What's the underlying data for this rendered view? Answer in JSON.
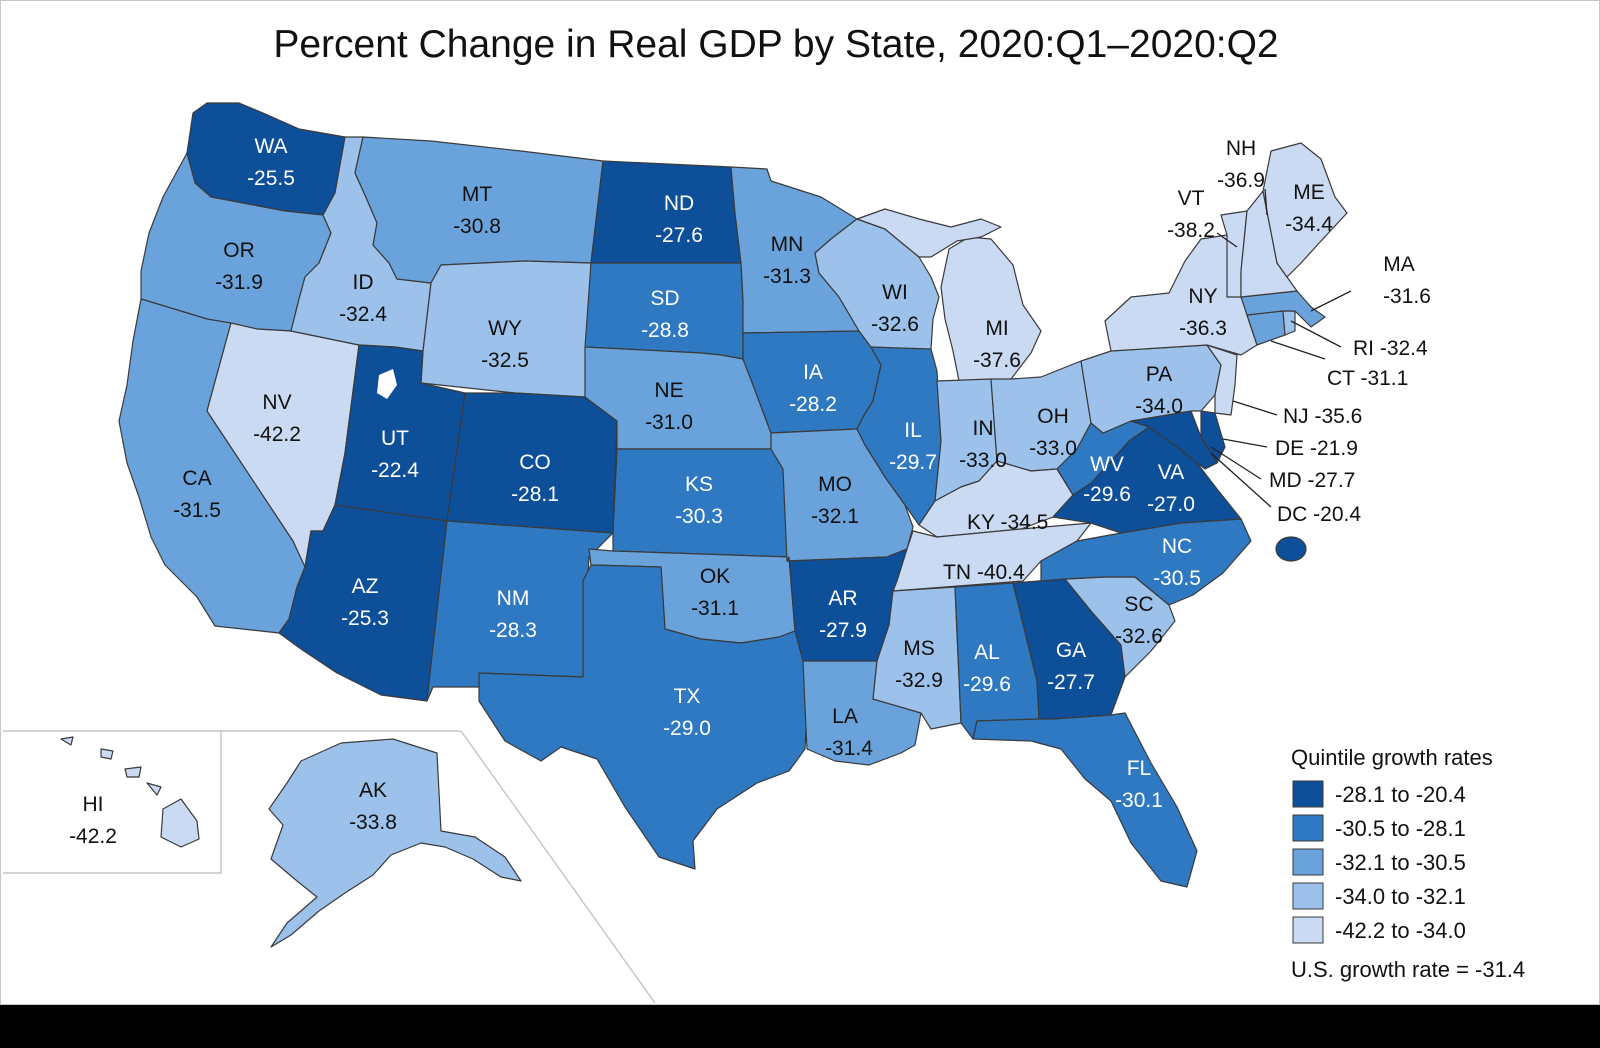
{
  "title": "Percent Change in Real GDP by State, 2020:Q1–2020:Q2",
  "colors": {
    "q1": "#0e4f9a",
    "q2": "#2f78c2",
    "q3": "#6aa3db",
    "q4": "#9cc1ea",
    "q5": "#c9daf2",
    "border": "#3a3a3a",
    "leader": "#222222",
    "inset_border": "#bbbbbb"
  },
  "legend": {
    "title": "Quintile growth rates",
    "items": [
      {
        "label": "-28.1 to -20.4",
        "color": "#0e4f9a"
      },
      {
        "label": "-30.5 to -28.1",
        "color": "#2f78c2"
      },
      {
        "label": "-32.1 to -30.5",
        "color": "#6aa3db"
      },
      {
        "label": "-34.0 to -32.1",
        "color": "#9cc1ea"
      },
      {
        "label": "-42.2 to -34.0",
        "color": "#c9daf2"
      }
    ],
    "us_rate": "U.S. growth rate = -31.4"
  },
  "states": {
    "WA": {
      "abbr": "WA",
      "value": "-25.5",
      "quintile": 1
    },
    "OR": {
      "abbr": "OR",
      "value": "-31.9",
      "quintile": 3
    },
    "CA": {
      "abbr": "CA",
      "value": "-31.5",
      "quintile": 3
    },
    "NV": {
      "abbr": "NV",
      "value": "-42.2",
      "quintile": 5
    },
    "ID": {
      "abbr": "ID",
      "value": "-32.4",
      "quintile": 4
    },
    "MT": {
      "abbr": "MT",
      "value": "-30.8",
      "quintile": 3
    },
    "WY": {
      "abbr": "WY",
      "value": "-32.5",
      "quintile": 4
    },
    "UT": {
      "abbr": "UT",
      "value": "-22.4",
      "quintile": 1
    },
    "AZ": {
      "abbr": "AZ",
      "value": "-25.3",
      "quintile": 1
    },
    "CO": {
      "abbr": "CO",
      "value": "-28.1",
      "quintile": 1
    },
    "NM": {
      "abbr": "NM",
      "value": "-28.3",
      "quintile": 2
    },
    "ND": {
      "abbr": "ND",
      "value": "-27.6",
      "quintile": 1
    },
    "SD": {
      "abbr": "SD",
      "value": "-28.8",
      "quintile": 2
    },
    "NE": {
      "abbr": "NE",
      "value": "-31.0",
      "quintile": 3
    },
    "KS": {
      "abbr": "KS",
      "value": "-30.3",
      "quintile": 2
    },
    "OK": {
      "abbr": "OK",
      "value": "-31.1",
      "quintile": 3
    },
    "TX": {
      "abbr": "TX",
      "value": "-29.0",
      "quintile": 2
    },
    "MN": {
      "abbr": "MN",
      "value": "-31.3",
      "quintile": 3
    },
    "IA": {
      "abbr": "IA",
      "value": "-28.2",
      "quintile": 2
    },
    "MO": {
      "abbr": "MO",
      "value": "-32.1",
      "quintile": 3
    },
    "AR": {
      "abbr": "AR",
      "value": "-27.9",
      "quintile": 1
    },
    "LA": {
      "abbr": "LA",
      "value": "-31.4",
      "quintile": 3
    },
    "WI": {
      "abbr": "WI",
      "value": "-32.6",
      "quintile": 4
    },
    "IL": {
      "abbr": "IL",
      "value": "-29.7",
      "quintile": 2
    },
    "MI": {
      "abbr": "MI",
      "value": "-37.6",
      "quintile": 5
    },
    "IN": {
      "abbr": "IN",
      "value": "-33.0",
      "quintile": 4
    },
    "OH": {
      "abbr": "OH",
      "value": "-33.0",
      "quintile": 4
    },
    "KY": {
      "abbr": "KY",
      "value": "-34.5",
      "quintile": 5
    },
    "TN": {
      "abbr": "TN",
      "value": "-40.4",
      "quintile": 5
    },
    "MS": {
      "abbr": "MS",
      "value": "-32.9",
      "quintile": 4
    },
    "AL": {
      "abbr": "AL",
      "value": "-29.6",
      "quintile": 2
    },
    "GA": {
      "abbr": "GA",
      "value": "-27.7",
      "quintile": 1
    },
    "FL": {
      "abbr": "FL",
      "value": "-30.1",
      "quintile": 2
    },
    "SC": {
      "abbr": "SC",
      "value": "-32.6",
      "quintile": 4
    },
    "NC": {
      "abbr": "NC",
      "value": "-30.5",
      "quintile": 2
    },
    "VA": {
      "abbr": "VA",
      "value": "-27.0",
      "quintile": 1
    },
    "WV": {
      "abbr": "WV",
      "value": "-29.6",
      "quintile": 2
    },
    "PA": {
      "abbr": "PA",
      "value": "-34.0",
      "quintile": 4
    },
    "NY": {
      "abbr": "NY",
      "value": "-36.3",
      "quintile": 5
    },
    "VT": {
      "abbr": "VT",
      "value": "-38.2",
      "quintile": 5
    },
    "NH": {
      "abbr": "NH",
      "value": "-36.9",
      "quintile": 5
    },
    "ME": {
      "abbr": "ME",
      "value": "-34.4",
      "quintile": 5
    },
    "MA": {
      "abbr": "MA",
      "value": "-31.6",
      "quintile": 3
    },
    "RI": {
      "abbr": "RI",
      "value": "-32.4",
      "quintile": 4
    },
    "CT": {
      "abbr": "CT",
      "value": "-31.1",
      "quintile": 3
    },
    "NJ": {
      "abbr": "NJ",
      "value": "-35.6",
      "quintile": 5
    },
    "DE": {
      "abbr": "DE",
      "value": "-21.9",
      "quintile": 1
    },
    "MD": {
      "abbr": "MD",
      "value": "-27.7",
      "quintile": 1
    },
    "DC": {
      "abbr": "DC",
      "value": "-20.4",
      "quintile": 1
    },
    "AK": {
      "abbr": "AK",
      "value": "-33.8",
      "quintile": 4
    },
    "HI": {
      "abbr": "HI",
      "value": "-42.2",
      "quintile": 5
    }
  },
  "callouts": {
    "MA": "MA",
    "MA_value": "-31.6",
    "RI": "RI -32.4",
    "CT": "CT -31.1",
    "NJ": "NJ -35.6",
    "DE": "DE -21.9",
    "MD": "MD -27.7",
    "DC": "DC -20.4",
    "KY": "KY -34.5",
    "TN": "TN -40.4"
  }
}
